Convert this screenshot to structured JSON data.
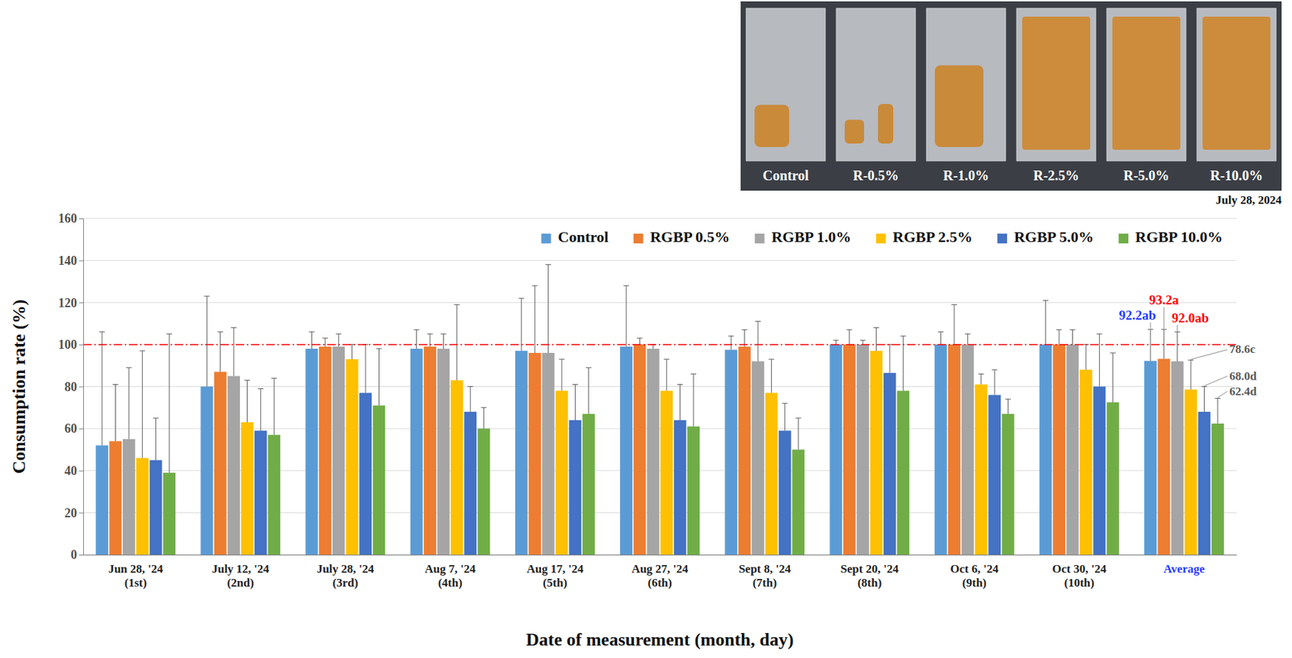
{
  "chart_data": {
    "type": "bar",
    "categories": [
      "Jun 28, '24 (1st)",
      "July 12, '24 (2nd)",
      "July 28, '24 (3rd)",
      "Aug 7, '24 (4th)",
      "Aug 17, '24 (5th)",
      "Aug 27, '24 (6th)",
      "Sept 8, '24 (7th)",
      "Sept 20, '24 (8th)",
      "Oct 6, '24 (9th)",
      "Oct 30, '24 (10th)",
      "Average"
    ],
    "series": [
      {
        "name": "Control",
        "color": "#5B9BD5",
        "values": [
          52,
          80,
          98,
          98,
          97,
          99,
          97.5,
          100,
          100,
          100,
          92.2
        ],
        "errors": [
          54,
          43,
          8,
          9,
          25,
          29,
          6.5,
          2,
          6,
          21,
          15
        ],
        "value_labels": [
          null,
          null,
          null,
          null,
          null,
          null,
          null,
          null,
          null,
          null,
          "92.2ab"
        ]
      },
      {
        "name": "RGBP 0.5%",
        "color": "#ED7D31",
        "values": [
          54,
          87,
          99,
          99,
          96,
          100,
          99,
          100,
          100,
          100,
          93.2
        ],
        "errors": [
          27,
          19,
          4,
          6,
          32,
          3,
          8,
          7,
          19,
          7,
          14
        ],
        "value_labels": [
          null,
          null,
          null,
          null,
          null,
          null,
          null,
          null,
          null,
          null,
          "93.2a"
        ]
      },
      {
        "name": "RGBP 1.0%",
        "color": "#A5A5A5",
        "values": [
          55,
          85,
          99,
          98,
          96,
          98,
          92,
          100,
          100,
          100,
          92.0
        ],
        "errors": [
          34,
          23,
          6,
          7,
          42,
          2,
          19,
          2,
          5,
          7,
          14
        ],
        "value_labels": [
          null,
          null,
          null,
          null,
          null,
          null,
          null,
          null,
          null,
          null,
          "92.0ab"
        ]
      },
      {
        "name": "RGBP 2.5%",
        "color": "#FFC000",
        "values": [
          46,
          63,
          93,
          83,
          78,
          78,
          77,
          97,
          81,
          88,
          78.6
        ],
        "errors": [
          51,
          20,
          7,
          36,
          15,
          15,
          16,
          11,
          5,
          12,
          14
        ],
        "value_labels": [
          null,
          null,
          null,
          null,
          null,
          null,
          null,
          null,
          null,
          null,
          "78.6c"
        ]
      },
      {
        "name": "RGBP 5.0%",
        "color": "#4472C4",
        "values": [
          45,
          59,
          77,
          68,
          64,
          64,
          59,
          86.5,
          76,
          80,
          68.0
        ],
        "errors": [
          20,
          20,
          23,
          12,
          17,
          17,
          13,
          13.5,
          12,
          25,
          12
        ],
        "value_labels": [
          null,
          null,
          null,
          null,
          null,
          null,
          null,
          null,
          null,
          null,
          "68.0d"
        ]
      },
      {
        "name": "RGBP 10.0%",
        "color": "#70AD47",
        "values": [
          39,
          57,
          71,
          60,
          67,
          61,
          50,
          78,
          67,
          72.5,
          62.4
        ],
        "errors": [
          66,
          27,
          27,
          10,
          22,
          25,
          15,
          26,
          7,
          23.5,
          12
        ],
        "value_labels": [
          null,
          null,
          null,
          null,
          null,
          null,
          null,
          null,
          null,
          null,
          "62.4d"
        ]
      }
    ],
    "xlabel": "Date of measurement (month, day)",
    "ylabel": "Consumption rate (%)",
    "ylim": [
      0,
      160
    ],
    "yticks": [
      0,
      20,
      40,
      60,
      80,
      100,
      120,
      140,
      160
    ],
    "grid": true,
    "legend": "top-right",
    "reference_line": 100
  },
  "inset": {
    "labels": [
      "Control",
      "R-0.5%",
      "R-1.0%",
      "R-2.5%",
      "R-5.0%",
      "R-10.0%"
    ],
    "date": "July 28, 2024"
  }
}
